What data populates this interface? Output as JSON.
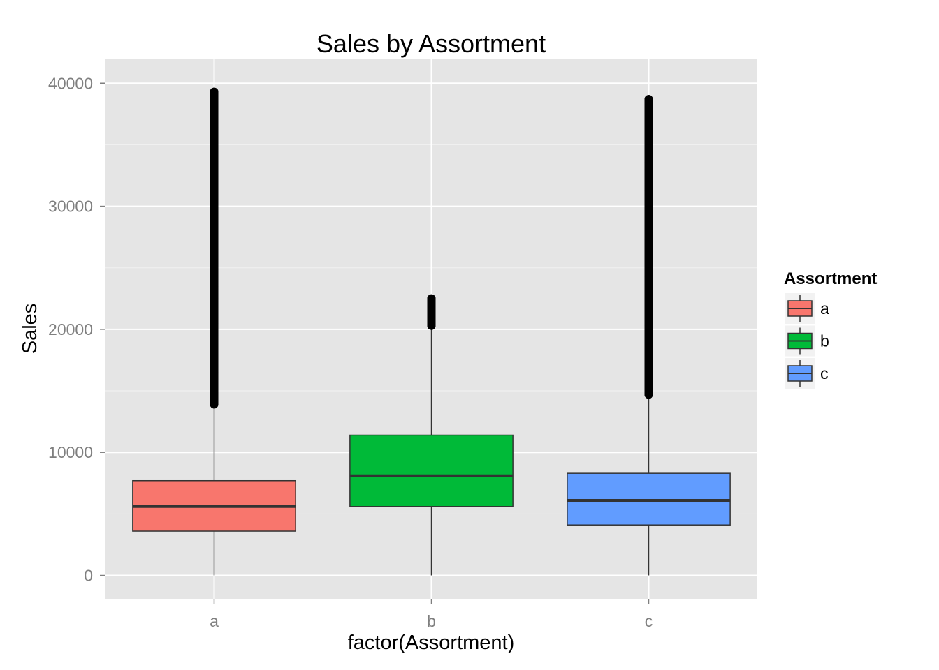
{
  "chart_data": {
    "type": "boxplot",
    "title": "Sales by Assortment",
    "xlabel": "factor(Assortment)",
    "ylabel": "Sales",
    "ylim": [
      -1900,
      42000
    ],
    "yticks": [
      0,
      10000,
      20000,
      30000,
      40000
    ],
    "categories": [
      "a",
      "b",
      "c"
    ],
    "grid": true,
    "legend": {
      "title": "Assortment",
      "position": "right",
      "entries": [
        {
          "label": "a",
          "color": "#F8766D"
        },
        {
          "label": "b",
          "color": "#00BA38"
        },
        {
          "label": "c",
          "color": "#619CFF"
        }
      ]
    },
    "boxes": [
      {
        "category": "a",
        "color": "#F8766D",
        "whisker_low": 0,
        "q1": 3600,
        "median": 5600,
        "q3": 7700,
        "whisker_high": 13800,
        "outliers": [
          13900,
          14500,
          15500,
          16500,
          17500,
          18500,
          19500,
          20500,
          21500,
          22500,
          23500,
          24500,
          25500,
          26500,
          27500,
          28500,
          29500,
          30500,
          31500,
          32500,
          33500,
          34200,
          35000,
          35800,
          36400,
          36900,
          37500,
          38000,
          38800,
          39100,
          39300
        ]
      },
      {
        "category": "b",
        "color": "#00BA38",
        "whisker_low": 0,
        "q1": 5600,
        "median": 8100,
        "q3": 11400,
        "whisker_high": 20200,
        "outliers": [
          20300,
          20700,
          21100,
          21500,
          21900,
          22500
        ]
      },
      {
        "category": "c",
        "color": "#619CFF",
        "whisker_low": 0,
        "q1": 4100,
        "median": 6100,
        "q3": 8300,
        "whisker_high": 14600,
        "outliers": [
          14700,
          15300,
          16300,
          17300,
          18300,
          19300,
          20300,
          21300,
          22300,
          23300,
          24300,
          25300,
          26300,
          27300,
          28300,
          29300,
          30300,
          31300,
          32300,
          33000,
          33600,
          34400,
          35000,
          35800,
          36300,
          38400,
          38700
        ]
      }
    ]
  }
}
